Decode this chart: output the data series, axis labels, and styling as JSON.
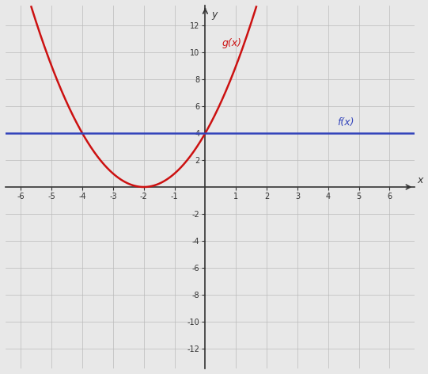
{
  "xlabel": "x",
  "ylabel": "y",
  "xlim": [
    -6.5,
    6.8
  ],
  "ylim": [
    -13.5,
    13.5
  ],
  "xticks": [
    -6,
    -5,
    -4,
    -3,
    -2,
    -1,
    1,
    2,
    3,
    4,
    5,
    6
  ],
  "yticks": [
    -12,
    -10,
    -8,
    -6,
    -4,
    -2,
    2,
    4,
    6,
    8,
    10,
    12
  ],
  "fx_value": 4,
  "gx_vertex_x": -2,
  "gx_vertex_y": 0,
  "gx_a": 1,
  "fx_label": "f(x)",
  "gx_label": "g(x)",
  "fx_color": "#3344bb",
  "gx_color": "#cc1111",
  "grid_color": "#bbbbbb",
  "bg_color": "#e8e8e8",
  "axis_color": "#333333",
  "tick_fontsize": 7,
  "axis_label_fontsize": 9,
  "func_label_fontsize": 9,
  "linewidth_fx": 1.8,
  "linewidth_gx": 1.8,
  "linewidth_axis": 1.2,
  "linewidth_grid": 0.5,
  "figsize": [
    5.41,
    4.72
  ],
  "dpi": 100
}
